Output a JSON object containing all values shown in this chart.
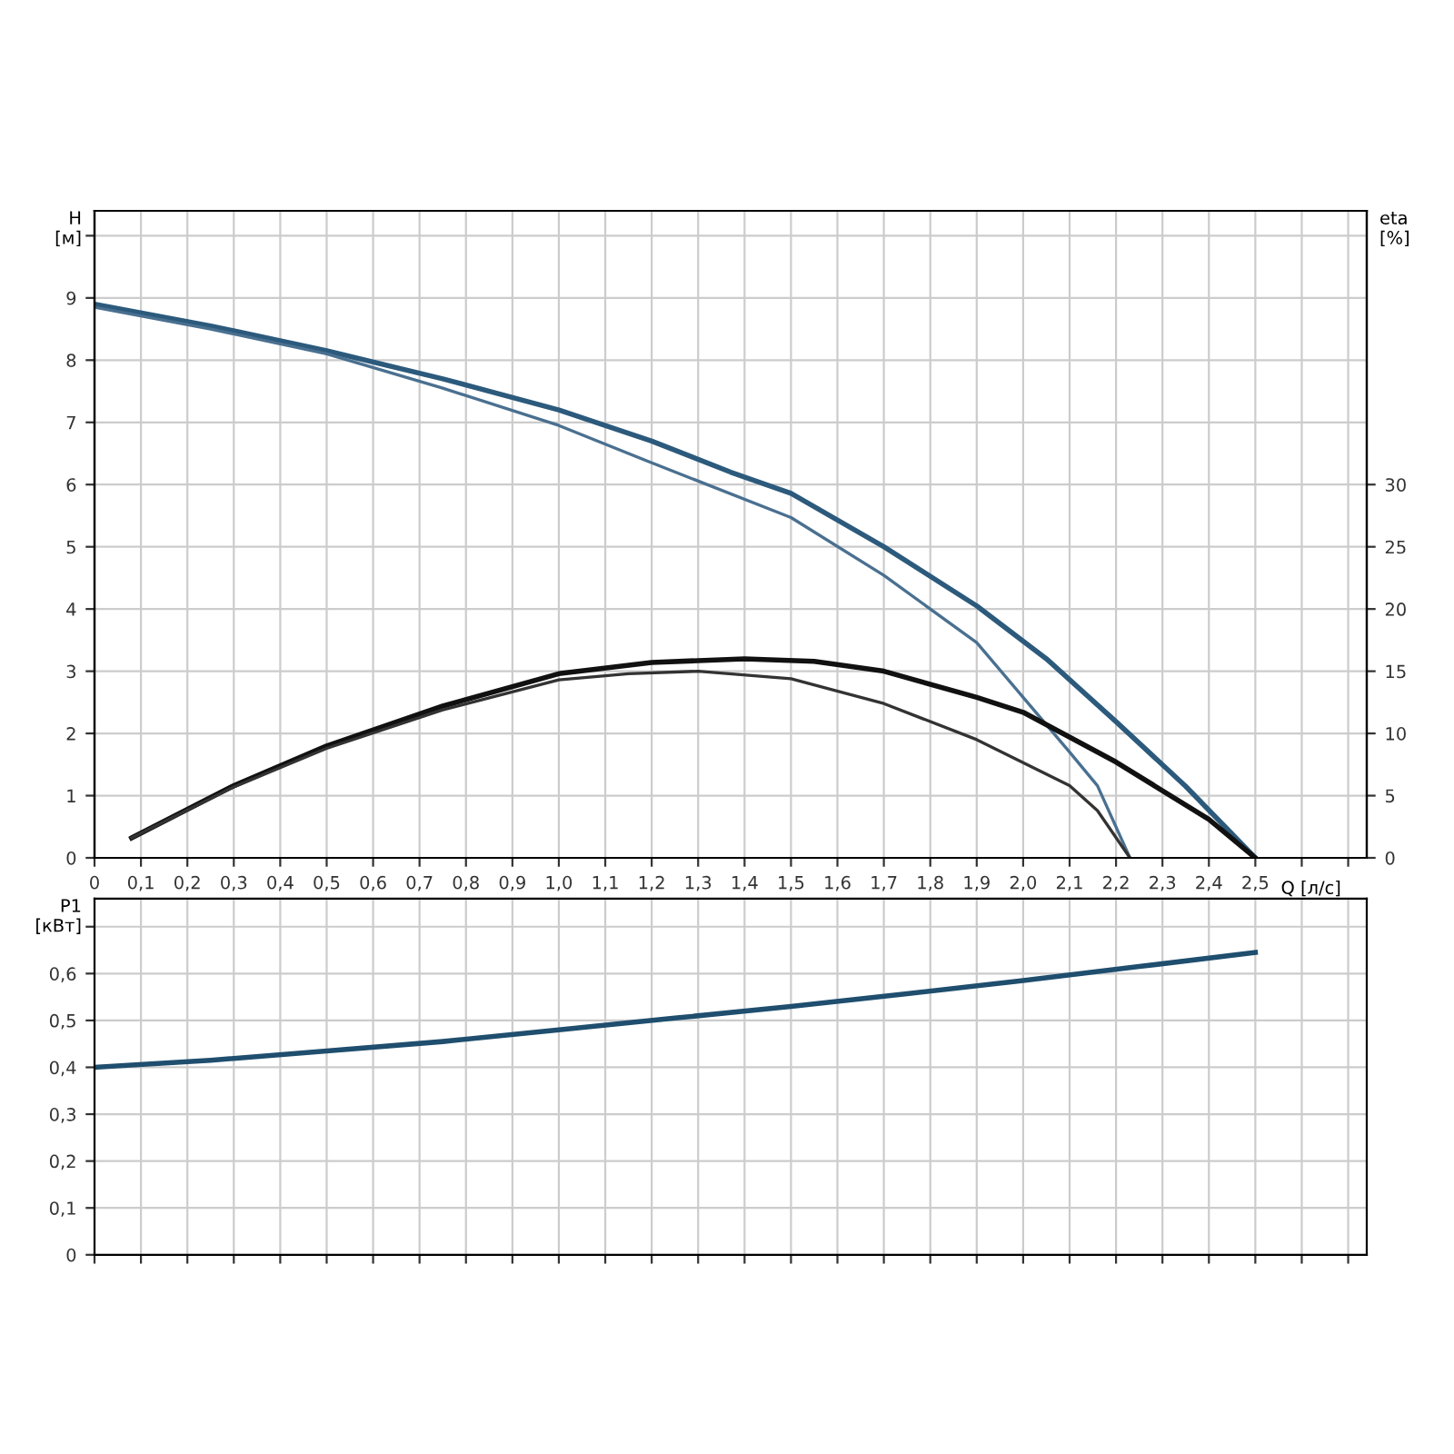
{
  "chart_data": [
    {
      "type": "line",
      "xlabel": "Q [л/с]",
      "ylabel": "H\n[м]",
      "y2label": "eta\n[%]",
      "grid": true,
      "legend": false,
      "xlim": [
        0,
        2.74
      ],
      "ylim": [
        0,
        10.4
      ],
      "y2lim": [
        0,
        52
      ],
      "xticks": [
        0,
        {
          "value": 0.1,
          "label": "0,1"
        },
        {
          "value": 0.2,
          "label": "0,2"
        },
        {
          "value": 0.3,
          "label": "0,3"
        },
        {
          "value": 0.4,
          "label": "0,4"
        },
        {
          "value": 0.5,
          "label": "0,5"
        },
        {
          "value": 0.6,
          "label": "0,6"
        },
        {
          "value": 0.7,
          "label": "0,7"
        },
        {
          "value": 0.8,
          "label": "0,8"
        },
        {
          "value": 0.9,
          "label": "0,9"
        },
        {
          "value": 1.0,
          "label": "1,0"
        },
        {
          "value": 1.1,
          "label": "1,1"
        },
        {
          "value": 1.2,
          "label": "1,2"
        },
        {
          "value": 1.3,
          "label": "1,3"
        },
        {
          "value": 1.4,
          "label": "1,4"
        },
        {
          "value": 1.5,
          "label": "1,5"
        },
        {
          "value": 1.6,
          "label": "1,6"
        },
        {
          "value": 1.7,
          "label": "1,7"
        },
        {
          "value": 1.8,
          "label": "1,8"
        },
        {
          "value": 1.9,
          "label": "1,9"
        },
        {
          "value": 2.0,
          "label": "2,0"
        },
        {
          "value": 2.1,
          "label": "2,1"
        },
        {
          "value": 2.2,
          "label": "2,2"
        },
        {
          "value": 2.3,
          "label": "2,3"
        },
        {
          "value": 2.4,
          "label": "2,4"
        },
        {
          "value": 2.5,
          "label": "2,5"
        },
        {
          "value": 2.6,
          "label": null
        },
        {
          "value": 2.7,
          "label": null
        }
      ],
      "yticks": [
        0,
        1,
        2,
        3,
        4,
        5,
        6,
        7,
        8,
        9,
        {
          "value": 10,
          "label": null
        }
      ],
      "y2ticks": [
        0,
        5,
        10,
        15,
        20,
        25,
        30
      ],
      "series": [
        {
          "color": "#2c5a7c",
          "x": [
            0,
            0.25,
            0.5,
            0.75,
            1.0,
            1.2,
            1.37,
            1.5,
            1.7,
            1.9,
            2.05,
            2.2,
            2.35,
            2.5
          ],
          "values": [
            8.9,
            8.55,
            8.15,
            7.7,
            7.2,
            6.7,
            6.2,
            5.86,
            5.0,
            4.05,
            3.2,
            2.19,
            1.15,
            0
          ]
        },
        {
          "color": "#4a7090",
          "x": [
            0,
            0.25,
            0.5,
            0.75,
            1.0,
            1.2,
            1.5,
            1.7,
            1.9,
            2.0,
            2.1,
            2.16,
            2.23
          ],
          "values": [
            8.85,
            8.5,
            8.1,
            7.55,
            6.95,
            6.35,
            5.47,
            4.54,
            3.46,
            2.58,
            1.7,
            1.16,
            0
          ]
        },
        {
          "axis": "y2",
          "color": "#111111",
          "x": [
            0.08,
            0.3,
            0.5,
            0.75,
            1.0,
            1.2,
            1.4,
            1.55,
            1.7,
            1.9,
            2.0,
            2.2,
            2.4,
            2.5
          ],
          "values": [
            1.6,
            5.8,
            9.0,
            12.2,
            14.8,
            15.7,
            16.0,
            15.8,
            15.0,
            12.9,
            11.7,
            7.7,
            3.1,
            0
          ]
        },
        {
          "axis": "y2",
          "color": "#333333",
          "x": [
            0.08,
            0.3,
            0.5,
            0.75,
            1.0,
            1.15,
            1.3,
            1.5,
            1.7,
            1.9,
            2.1,
            2.16,
            2.23
          ],
          "values": [
            1.6,
            5.7,
            8.8,
            11.9,
            14.3,
            14.8,
            15.0,
            14.4,
            12.4,
            9.5,
            5.8,
            3.8,
            0
          ]
        }
      ]
    },
    {
      "type": "line",
      "ylabel": "P1\n[кВт]",
      "grid": true,
      "legend": false,
      "tick_labels": "y",
      "xlim": [
        0,
        2.74
      ],
      "ylim": [
        0,
        0.76
      ],
      "xticks": [
        0,
        0.1,
        0.2,
        0.3,
        0.4,
        0.5,
        0.6,
        0.7,
        0.8,
        0.9,
        1.0,
        1.1,
        1.2,
        1.3,
        1.4,
        1.5,
        1.6,
        1.7,
        1.8,
        1.9,
        2.0,
        2.1,
        2.2,
        2.3,
        2.4,
        2.5,
        2.6,
        2.7
      ],
      "yticks": [
        0,
        {
          "value": 0.1,
          "label": "0,1"
        },
        {
          "value": 0.2,
          "label": "0,2"
        },
        {
          "value": 0.3,
          "label": "0,3"
        },
        {
          "value": 0.4,
          "label": "0,4"
        },
        {
          "value": 0.5,
          "label": "0,5"
        },
        {
          "value": 0.6,
          "label": "0,6"
        },
        {
          "value": 0.7,
          "label": null
        }
      ],
      "series": [
        {
          "color": "#1f4e6e",
          "x": [
            0,
            0.25,
            0.5,
            0.75,
            1.0,
            1.25,
            1.5,
            1.75,
            2.0,
            2.25,
            2.5
          ],
          "values": [
            0.4,
            0.415,
            0.435,
            0.455,
            0.48,
            0.505,
            0.53,
            0.557,
            0.585,
            0.615,
            0.645
          ]
        }
      ]
    }
  ]
}
